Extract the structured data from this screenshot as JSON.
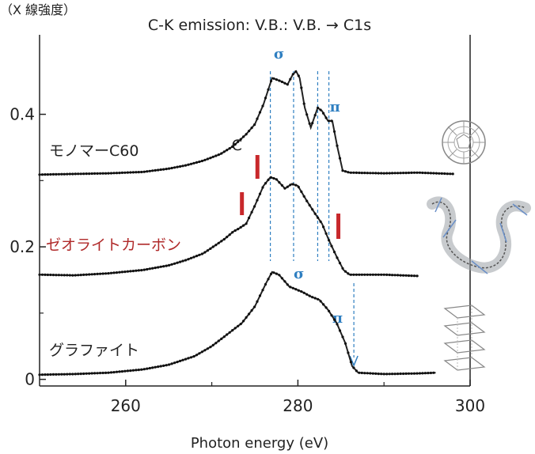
{
  "chart_data": {
    "type": "line",
    "title": "C-K emission: V.B.: V.B. → C1s",
    "y_unit_label": "（X 線強度）",
    "xlabel": "Photon energy (eV)",
    "ylabel": "",
    "xlim": [
      250,
      300
    ],
    "ylim": [
      -0.01,
      0.52
    ],
    "xticks": [
      "260",
      "280",
      "300"
    ],
    "yticks": [
      "0",
      "0.2",
      "0.4"
    ],
    "grid": false,
    "legend": "none",
    "series": [
      {
        "name": "モノマーC60",
        "color": "#222222",
        "label_color": "#222222",
        "points": [
          [
            250,
            0.309
          ],
          [
            254,
            0.31
          ],
          [
            258,
            0.311
          ],
          [
            262,
            0.313
          ],
          [
            265,
            0.318
          ],
          [
            267,
            0.323
          ],
          [
            269,
            0.33
          ],
          [
            271,
            0.34
          ],
          [
            272.5,
            0.352
          ],
          [
            274,
            0.37
          ],
          [
            275,
            0.385
          ],
          [
            276,
            0.415
          ],
          [
            277,
            0.455
          ],
          [
            278,
            0.45
          ],
          [
            278.8,
            0.445
          ],
          [
            279.4,
            0.46
          ],
          [
            279.8,
            0.465
          ],
          [
            280.2,
            0.455
          ],
          [
            280.8,
            0.41
          ],
          [
            281.5,
            0.38
          ],
          [
            282.3,
            0.41
          ],
          [
            282.8,
            0.405
          ],
          [
            283.5,
            0.39
          ],
          [
            284,
            0.39
          ],
          [
            284.6,
            0.35
          ],
          [
            285.2,
            0.315
          ],
          [
            286,
            0.312
          ],
          [
            290,
            0.311
          ],
          [
            294,
            0.312
          ],
          [
            298,
            0.31
          ]
        ]
      },
      {
        "name": "ゼオライトカーボン",
        "color": "#222222",
        "label_color": "#b02a2a",
        "points": [
          [
            250,
            0.158
          ],
          [
            254,
            0.157
          ],
          [
            258,
            0.16
          ],
          [
            262,
            0.165
          ],
          [
            265,
            0.172
          ],
          [
            267,
            0.18
          ],
          [
            269,
            0.19
          ],
          [
            270.5,
            0.203
          ],
          [
            271.5,
            0.212
          ],
          [
            272.5,
            0.223
          ],
          [
            273.2,
            0.228
          ],
          [
            274,
            0.235
          ],
          [
            275,
            0.262
          ],
          [
            276,
            0.292
          ],
          [
            276.8,
            0.305
          ],
          [
            277.5,
            0.302
          ],
          [
            278.5,
            0.288
          ],
          [
            279.3,
            0.295
          ],
          [
            280,
            0.292
          ],
          [
            281,
            0.27
          ],
          [
            282,
            0.25
          ],
          [
            282.8,
            0.235
          ],
          [
            283.6,
            0.21
          ],
          [
            284.5,
            0.185
          ],
          [
            285.3,
            0.165
          ],
          [
            286,
            0.158
          ],
          [
            290,
            0.158
          ],
          [
            294,
            0.156
          ]
        ]
      },
      {
        "name": "グラファイト",
        "color": "#222222",
        "label_color": "#222222",
        "points": [
          [
            250,
            0.007
          ],
          [
            254,
            0.008
          ],
          [
            258,
            0.01
          ],
          [
            262,
            0.015
          ],
          [
            265,
            0.022
          ],
          [
            268,
            0.035
          ],
          [
            270,
            0.05
          ],
          [
            272,
            0.07
          ],
          [
            273.5,
            0.085
          ],
          [
            275,
            0.11
          ],
          [
            276.3,
            0.145
          ],
          [
            277,
            0.162
          ],
          [
            277.8,
            0.158
          ],
          [
            279,
            0.14
          ],
          [
            280.5,
            0.132
          ],
          [
            281.5,
            0.125
          ],
          [
            282.5,
            0.12
          ],
          [
            283.5,
            0.105
          ],
          [
            284.5,
            0.085
          ],
          [
            285.5,
            0.055
          ],
          [
            286.3,
            0.02
          ],
          [
            287,
            0.01
          ],
          [
            290,
            0.008
          ],
          [
            294,
            0.009
          ],
          [
            296,
            0.01
          ]
        ]
      }
    ],
    "annotations": {
      "sigma": "σ",
      "pi": "π",
      "c": "C",
      "dashed_lines_x": [
        276.8,
        279.5,
        282.3,
        283.6
      ],
      "arrow_x": 286.5,
      "red_bars_x": [
        273.5,
        275.3,
        284.7
      ]
    }
  }
}
